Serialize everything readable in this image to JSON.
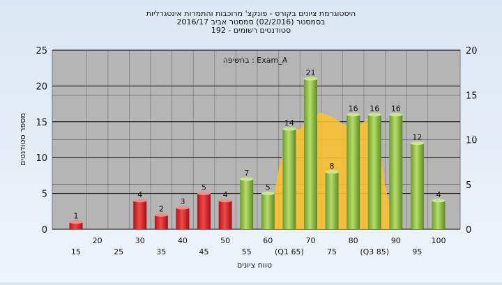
{
  "chart_data": {
    "type": "bar",
    "title_lines": [
      "היסטוגרמת ציונים בקורס - פונקצ' מרוכבות והתמרות אינטגרליות",
      "בסמסטר  (02/2016)  סמסטר אביב 2016/17",
      "סטודנטים רשומים - 192"
    ],
    "annotation": "בחשיפה : Exam_A",
    "xlabel": "טווח ציונים",
    "ylabel": "מספר סטודנטים",
    "ylim": [
      0,
      25
    ],
    "y_ticks": [
      "0",
      "5",
      "10",
      "15",
      "20",
      "25"
    ],
    "y2lim": [
      0,
      20
    ],
    "y2_ticks": [
      "0",
      "5",
      "10",
      "15",
      "20"
    ],
    "x_tick_labels": [
      "15",
      "20",
      "25",
      "30",
      "35",
      "40",
      "45",
      "50",
      "55",
      "60",
      "(Q1 65)",
      "70",
      "75",
      "80",
      "(Q3 85)",
      "90",
      "95",
      "100"
    ],
    "categories": [
      15,
      20,
      25,
      30,
      35,
      40,
      45,
      50,
      55,
      60,
      65,
      70,
      75,
      80,
      85,
      90,
      95,
      100
    ],
    "values": [
      1,
      0,
      0,
      4,
      2,
      3,
      5,
      4,
      7,
      5,
      14,
      21,
      8,
      16,
      16,
      16,
      12,
      4
    ],
    "data_labels": [
      "1",
      "",
      "",
      "4",
      "2",
      "3",
      "5",
      "4",
      "7",
      "5",
      "14",
      "21",
      "8",
      "16",
      "16",
      "16",
      "12",
      "4"
    ],
    "bar_colors": [
      "red",
      "red",
      "red",
      "red",
      "red",
      "red",
      "red",
      "red",
      "green",
      "green",
      "green",
      "green",
      "green",
      "green",
      "green",
      "green",
      "green",
      "green"
    ],
    "area_series": {
      "x": [
        60,
        62.5,
        65,
        67.5,
        70,
        72.5,
        75,
        77.5,
        80,
        82.5,
        85,
        87.5,
        90
      ],
      "values": [
        0,
        6.6,
        11.2,
        11.2,
        12.8,
        13,
        12.6,
        11.8,
        11.2,
        12,
        13.2,
        4.8,
        0
      ],
      "axis": "right"
    },
    "grid": true,
    "colors": {
      "plot_bg": "#b5b5b5",
      "red_bar": "#e02a2a",
      "green_bar": "#8fc542",
      "area_fill": "#fbc02d",
      "grid": "#000000"
    }
  }
}
